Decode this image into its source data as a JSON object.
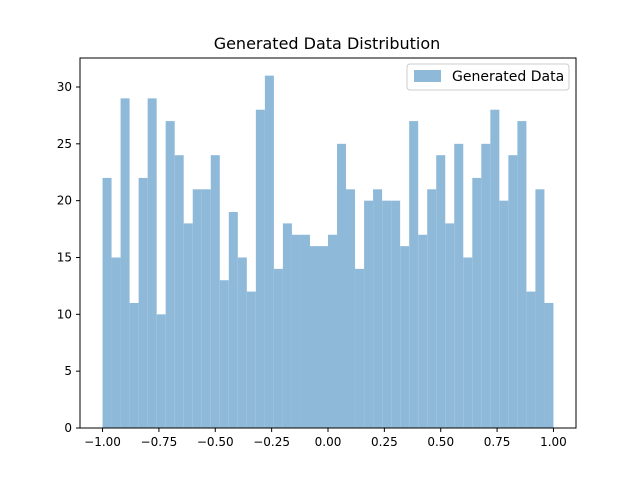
{
  "chart_data": {
    "type": "bar",
    "title": "Generated Data Distribution",
    "xlabel": "",
    "ylabel": "",
    "xlim": [
      -1.1,
      1.1
    ],
    "ylim": [
      0,
      32.55
    ],
    "bin_start": -1.0,
    "bin_width": 0.04,
    "x_ticks": [
      {
        "value": -1.0,
        "label": "−1.00"
      },
      {
        "value": -0.75,
        "label": "−0.75"
      },
      {
        "value": -0.5,
        "label": "−0.50"
      },
      {
        "value": -0.25,
        "label": "−0.25"
      },
      {
        "value": 0.0,
        "label": "0.00"
      },
      {
        "value": 0.25,
        "label": "0.25"
      },
      {
        "value": 0.5,
        "label": "0.50"
      },
      {
        "value": 0.75,
        "label": "0.75"
      },
      {
        "value": 1.0,
        "label": "1.00"
      }
    ],
    "y_ticks": [
      {
        "value": 0,
        "label": "0"
      },
      {
        "value": 5,
        "label": "5"
      },
      {
        "value": 10,
        "label": "10"
      },
      {
        "value": 15,
        "label": "15"
      },
      {
        "value": 20,
        "label": "20"
      },
      {
        "value": 25,
        "label": "25"
      },
      {
        "value": 30,
        "label": "30"
      }
    ],
    "grid": false,
    "legend_position": "top-right",
    "series": [
      {
        "name": "Generated Data",
        "color": "#8fb9d9",
        "values": [
          22,
          15,
          29,
          11,
          22,
          29,
          10,
          27,
          24,
          18,
          21,
          21,
          24,
          13,
          19,
          15,
          12,
          28,
          31,
          14,
          18,
          17,
          17,
          16,
          16,
          17,
          25,
          21,
          14,
          20,
          21,
          20,
          20,
          16,
          27,
          17,
          21,
          24,
          18,
          25,
          15,
          22,
          25,
          28,
          20,
          24,
          27,
          12,
          21,
          11
        ]
      }
    ]
  }
}
